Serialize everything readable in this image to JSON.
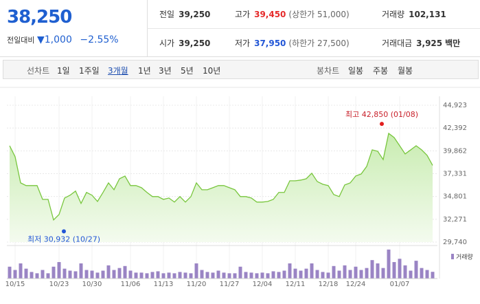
{
  "header": {
    "price": "38,250",
    "change_label": "전일대비",
    "change": "1,000",
    "rate": "−2.55%",
    "stats": [
      {
        "label": "전일",
        "value": "39,250"
      },
      {
        "label": "고가",
        "value": "39,450",
        "extra": "(상한가 51,000)"
      },
      {
        "label": "거래량",
        "value": "102,131"
      },
      {
        "label": "시가",
        "value": "39,250"
      },
      {
        "label": "저가",
        "value": "37,950",
        "extra": "(하한가 27,500)"
      },
      {
        "label": "거래대금",
        "value": "3,925",
        "unit": "백만"
      }
    ]
  },
  "tabs": {
    "line_label": "선차트",
    "line": [
      "1일",
      "1주일",
      "3개월",
      "1년",
      "3년",
      "5년",
      "10년"
    ],
    "selected": "3개월",
    "candle_label": "봉차트",
    "candle": [
      "일봉",
      "주봉",
      "월봉"
    ]
  },
  "chart_data": {
    "type": "line",
    "color": "#78c63d",
    "categories": [
      null,
      "10/15",
      null,
      null,
      null,
      null,
      null,
      null,
      null,
      "10/23",
      null,
      null,
      null,
      null,
      null,
      "10/30",
      null,
      null,
      null,
      null,
      null,
      null,
      "11/06",
      null,
      null,
      null,
      null,
      null,
      "11/13",
      null,
      null,
      null,
      null,
      null,
      "11/20",
      null,
      null,
      null,
      null,
      null,
      "11/27",
      null,
      null,
      null,
      null,
      null,
      "12/04",
      null,
      null,
      null,
      null,
      null,
      "12/11",
      null,
      null,
      null,
      null,
      null,
      "12/18",
      null,
      null,
      null,
      null,
      "12/24",
      null,
      null,
      null,
      null,
      null,
      null,
      null,
      "01/07",
      null,
      null,
      null,
      null,
      null,
      null
    ],
    "values": [
      40430,
      39210,
      36310,
      36010,
      36010,
      36010,
      34480,
      34480,
      32200,
      32800,
      34630,
      34940,
      35400,
      34030,
      35250,
      34940,
      34250,
      35250,
      36310,
      35550,
      36770,
      37070,
      36010,
      36010,
      35780,
      35250,
      34790,
      34790,
      34480,
      34630,
      34180,
      34790,
      34180,
      34790,
      36310,
      35550,
      35550,
      35780,
      36010,
      36010,
      35780,
      35550,
      34790,
      34790,
      34630,
      34180,
      34180,
      34250,
      34480,
      35250,
      35250,
      36540,
      36540,
      36620,
      36770,
      37380,
      36460,
      36160,
      36010,
      35020,
      34790,
      36080,
      36310,
      37070,
      37300,
      38140,
      39970,
      39820,
      38900,
      41800,
      41340,
      40430,
      39520,
      39970,
      40430,
      39970,
      39360,
      38250
    ],
    "ylim": [
      29740,
      44923
    ],
    "yticks": [
      {
        "value": 29740,
        "label": "29,740"
      },
      {
        "value": 32271,
        "label": "32,271"
      },
      {
        "value": 34801,
        "label": "34,801"
      },
      {
        "value": 37331,
        "label": "37,331"
      },
      {
        "value": 39862,
        "label": "39,862"
      },
      {
        "value": 42392,
        "label": "42,392"
      },
      {
        "value": 44923,
        "label": "44,923"
      }
    ],
    "high": {
      "label": "최고 42,850 (01/08)",
      "value": 42850
    },
    "low": {
      "label": "최저 30,932 (10/27)",
      "value": 30932
    },
    "volume": {
      "name": "거래량",
      "color": "#9a84c4",
      "ylim": [
        0,
        480000
      ],
      "values": [
        180000,
        130000,
        230000,
        150000,
        100000,
        80000,
        130000,
        80000,
        180000,
        250000,
        150000,
        120000,
        110000,
        230000,
        130000,
        120000,
        90000,
        120000,
        200000,
        130000,
        160000,
        190000,
        120000,
        90000,
        90000,
        80000,
        100000,
        110000,
        80000,
        90000,
        80000,
        100000,
        90000,
        80000,
        230000,
        130000,
        100000,
        90000,
        120000,
        90000,
        80000,
        80000,
        180000,
        100000,
        90000,
        80000,
        90000,
        80000,
        110000,
        100000,
        120000,
        230000,
        150000,
        120000,
        150000,
        230000,
        130000,
        100000,
        90000,
        190000,
        120000,
        200000,
        130000,
        180000,
        130000,
        160000,
        280000,
        230000,
        160000,
        440000,
        250000,
        300000,
        200000,
        120000,
        270000,
        160000,
        130000,
        102131
      ]
    }
  }
}
